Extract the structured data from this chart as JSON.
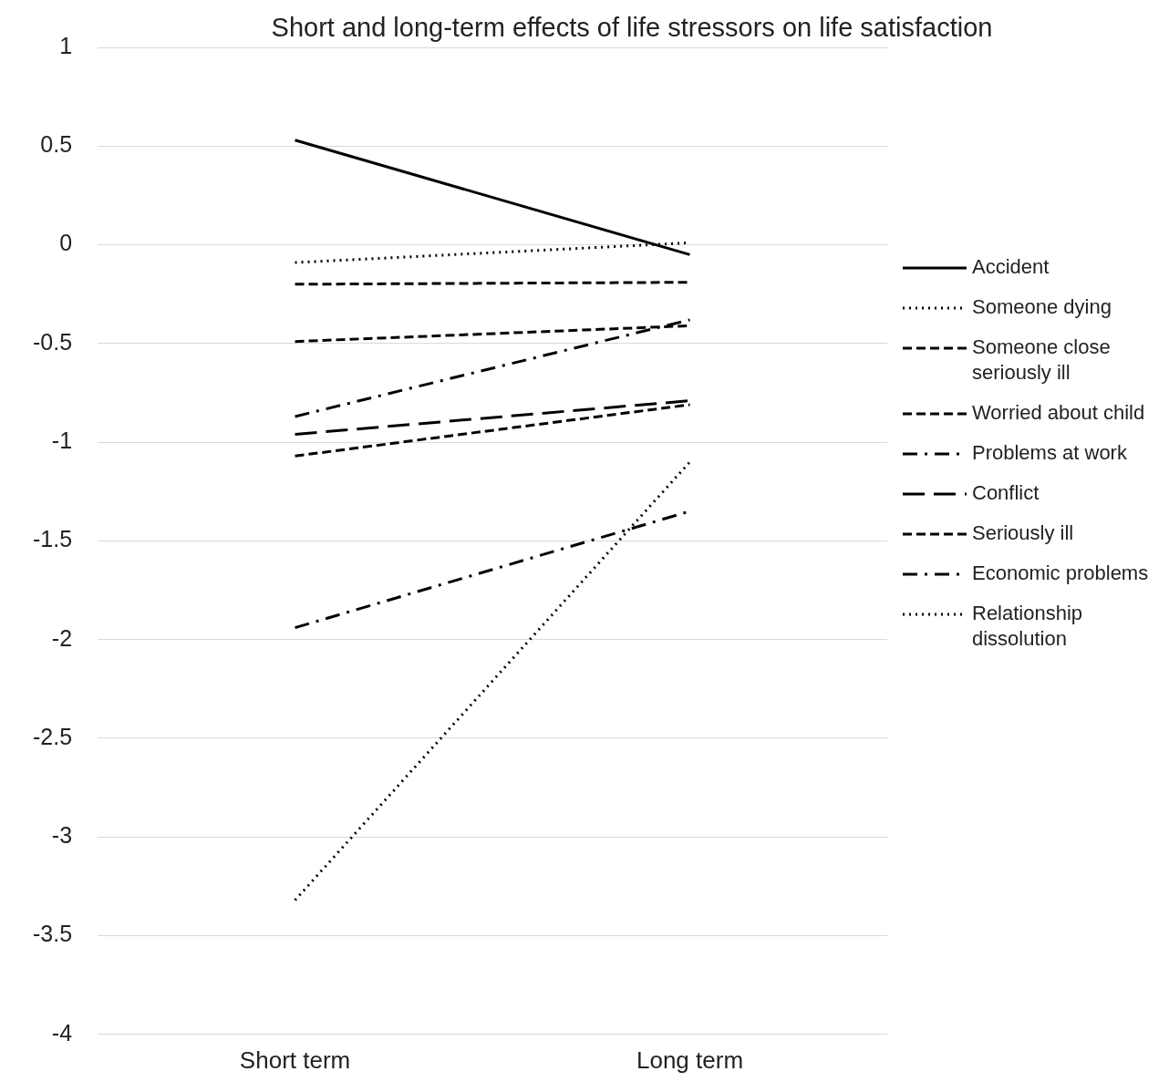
{
  "chart_data": {
    "type": "line",
    "title": "Short and long-term effects of life stressors on life satisfaction",
    "categories": [
      "Short term",
      "Long term"
    ],
    "series": [
      {
        "name": "Accident",
        "color": "#000000",
        "line_style": "solid",
        "values": [
          0.53,
          -0.05
        ]
      },
      {
        "name": "Someone dying",
        "color": "#000000",
        "line_style": "dotted",
        "values": [
          -0.09,
          0.01
        ]
      },
      {
        "name": "Someone close seriously ill",
        "color": "#000000",
        "line_style": "dashed",
        "values": [
          -0.2,
          -0.19
        ]
      },
      {
        "name": "Worried about child",
        "color": "#000000",
        "line_style": "dashed",
        "values": [
          -0.49,
          -0.41
        ]
      },
      {
        "name": "Problems at work",
        "color": "#000000",
        "line_style": "dashdot",
        "values": [
          -0.87,
          -0.38
        ]
      },
      {
        "name": "Conflict",
        "color": "#000000",
        "line_style": "longdash",
        "values": [
          -0.96,
          -0.79
        ]
      },
      {
        "name": "Seriously ill",
        "color": "#000000",
        "line_style": "dashed",
        "values": [
          -1.07,
          -0.81
        ]
      },
      {
        "name": "Economic problems",
        "color": "#000000",
        "line_style": "dashdot",
        "values": [
          -1.94,
          -1.35
        ]
      },
      {
        "name": "Relationship dissolution",
        "color": "#000000",
        "line_style": "dotted",
        "values": [
          -3.32,
          -1.1
        ]
      }
    ],
    "ylim": [
      -4,
      1
    ],
    "yticks": [
      1,
      0.5,
      0,
      -0.5,
      -1,
      -1.5,
      -2,
      -2.5,
      -3,
      -3.5,
      -4
    ],
    "grid": "y",
    "legend": "right",
    "marker": "none"
  }
}
